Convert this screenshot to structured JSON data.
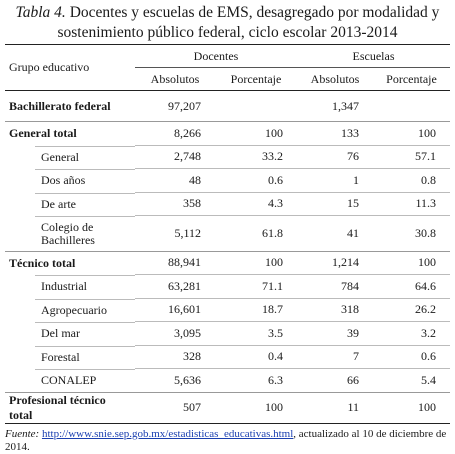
{
  "title": {
    "label": "Tabla 4.",
    "text": "Docentes y escuelas de EMS, desagregado por modalidad y sostenimiento público federal, ciclo escolar 2013-2014"
  },
  "table": {
    "header": [
      [
        "Grupo educativo",
        "Docentes",
        "Escuelas"
      ],
      [
        "Absolutos",
        "Porcentaje",
        "Absolutos",
        "Porcentaje"
      ]
    ],
    "groups": [
      {
        "cells": [
          "Bachillerato federal",
          "97,207",
          null,
          "1,347",
          null
        ],
        "children": []
      },
      {
        "cells": [
          "General total",
          "8,266",
          "100",
          "133",
          "100"
        ],
        "children": [
          [
            "General",
            "2,748",
            "33.2",
            "76",
            "57.1"
          ],
          [
            "Dos años",
            "48",
            "0.6",
            "1",
            "0.8"
          ],
          [
            "De arte",
            "358",
            "4.3",
            "15",
            "11.3"
          ],
          [
            "Colegio de Bachilleres",
            "5,112",
            "61.8",
            "41",
            "30.8"
          ]
        ]
      },
      {
        "cells": [
          "Técnico total",
          "88,941",
          "100",
          "1,214",
          "100"
        ],
        "children": [
          [
            "Industrial",
            "63,281",
            "71.1",
            "784",
            "64.6"
          ],
          [
            "Agropecuario",
            "16,601",
            "18.7",
            "318",
            "26.2"
          ],
          [
            "Del mar",
            "3,095",
            "3.5",
            "39",
            "3.2"
          ],
          [
            "Forestal",
            "328",
            "0.4",
            "7",
            "0.6"
          ],
          [
            "CONALEP",
            "5,636",
            "6.3",
            "66",
            "5.4"
          ]
        ]
      },
      {
        "cells": [
          "Profesional técnico total",
          "507",
          "100",
          "11",
          "100"
        ],
        "children": []
      }
    ]
  },
  "footnote": {
    "label": "Fuente:",
    "url": "http://www.snie.sep.gob.mx/estadisticas_educativas.html",
    "text": ", actualizado al 10 de diciembre de 2014."
  }
}
